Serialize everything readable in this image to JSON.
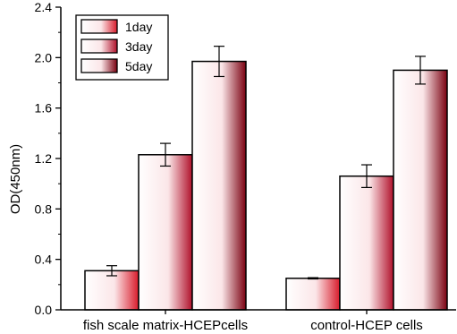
{
  "chart_data": {
    "type": "bar",
    "title": "",
    "xlabel": "",
    "ylabel": "OD(450nm)",
    "categories": [
      "fish scale matrix-HCEPcells",
      "control-HCEP cells"
    ],
    "series": [
      {
        "name": "1day",
        "values": [
          0.31,
          0.25
        ],
        "errors": [
          0.04,
          0.005
        ],
        "color": "#d81b2b"
      },
      {
        "name": "3day",
        "values": [
          1.23,
          1.06
        ],
        "errors": [
          0.09,
          0.09
        ],
        "color": "#b0102a"
      },
      {
        "name": "5day",
        "values": [
          1.97,
          1.9
        ],
        "errors": [
          0.12,
          0.11
        ],
        "color": "#7a0010"
      }
    ],
    "ylim": [
      0,
      2.4
    ],
    "yticks": [
      "0.0",
      "0.4",
      "0.8",
      "1.2",
      "1.6",
      "2.0",
      "2.4"
    ],
    "grid": false,
    "legend_position": "top-left"
  }
}
